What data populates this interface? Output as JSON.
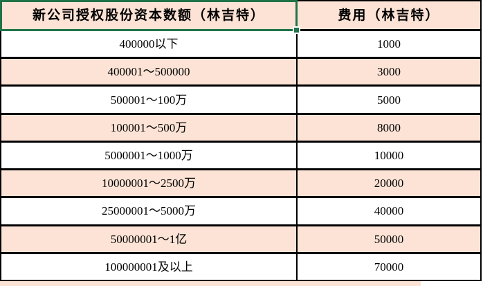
{
  "colors": {
    "peach_fill": "#fce3d5",
    "row_fill": "#ffffff",
    "grid_border": "#000000",
    "selection_green": "#1f7346",
    "text": "#000000"
  },
  "selection": {
    "selected_cell": "header-capital-cell",
    "has_fill_handle": true
  },
  "chart_data": {
    "type": "table",
    "title": "",
    "columns": [
      "新公司授权股份资本数额（林吉特）",
      "费用（林吉特）"
    ],
    "rows": [
      [
        "400000以下",
        "1000"
      ],
      [
        "400001～500000",
        "3000"
      ],
      [
        "500001～100万",
        "5000"
      ],
      [
        "100001～500万",
        "8000"
      ],
      [
        "5000001～1000万",
        "10000"
      ],
      [
        "10000001～2500万",
        "20000"
      ],
      [
        "25000001～5000万",
        "40000"
      ],
      [
        "50000001～1亿",
        "50000"
      ],
      [
        "100000001及以上",
        "70000"
      ]
    ],
    "grid": true,
    "legend_position": "none",
    "striped_rows": true
  }
}
